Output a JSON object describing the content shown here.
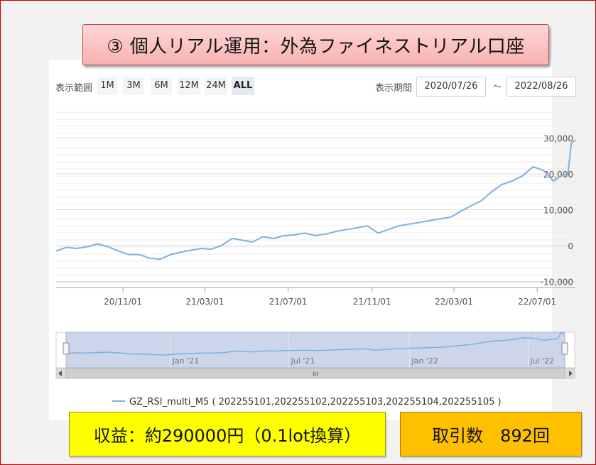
{
  "banner": {
    "title": "③ 個人リアル運用：外為ファイネストリアル口座"
  },
  "range_selector": {
    "label": "表示範囲",
    "buttons": [
      "1M",
      "3M",
      "6M",
      "12M",
      "24M",
      "ALL"
    ],
    "selected": "ALL"
  },
  "period": {
    "label": "表示期間",
    "from": "2020/07/26",
    "separator": "～",
    "to": "2022/08/26"
  },
  "colors": {
    "line": "#7eb0e0",
    "navigator_fill": "#cdd5ea",
    "banner": "#f7b2b2",
    "profit_box": "#ffff00",
    "trades_box": "#ffc000"
  },
  "chart_data": {
    "type": "line",
    "x_tick_labels": [
      "20/11/01",
      "21/03/01",
      "21/07/01",
      "21/11/01",
      "22/03/01",
      "22/07/01"
    ],
    "y_tick_labels": [
      "30,000",
      "20,000",
      "10,000",
      "0",
      "-10,000"
    ],
    "ylim": [
      -10000,
      30000
    ],
    "xlim": [
      "2020-07-26",
      "2022-08-26"
    ],
    "grid": true,
    "legend_position": "bottom",
    "series": [
      {
        "name": "GZ_RSI_multi_M5 ( 202255101,202255102,202255103,202255104,202255105 )",
        "x": [
          "2020-07-26",
          "2020-08-10",
          "2020-08-25",
          "2020-09-10",
          "2020-09-25",
          "2020-10-10",
          "2020-10-25",
          "2020-11-10",
          "2020-11-25",
          "2020-12-10",
          "2020-12-25",
          "2021-01-10",
          "2021-01-25",
          "2021-02-10",
          "2021-02-25",
          "2021-03-10",
          "2021-03-25",
          "2021-04-10",
          "2021-04-25",
          "2021-05-10",
          "2021-05-25",
          "2021-06-10",
          "2021-06-25",
          "2021-07-10",
          "2021-07-25",
          "2021-08-10",
          "2021-08-25",
          "2021-09-10",
          "2021-09-25",
          "2021-10-10",
          "2021-10-25",
          "2021-11-10",
          "2021-11-25",
          "2021-12-10",
          "2021-12-25",
          "2022-01-10",
          "2022-01-25",
          "2022-02-10",
          "2022-02-25",
          "2022-03-10",
          "2022-03-25",
          "2022-04-10",
          "2022-04-25",
          "2022-05-10",
          "2022-05-25",
          "2022-06-10",
          "2022-06-25",
          "2022-07-10",
          "2022-07-25",
          "2022-08-05",
          "2022-08-15",
          "2022-08-20",
          "2022-08-26"
        ],
        "values": [
          -1500,
          -500,
          -800,
          -300,
          500,
          -300,
          -1500,
          -2500,
          -2500,
          -3500,
          -3800,
          -2500,
          -1800,
          -1200,
          -800,
          -1000,
          0,
          2000,
          1500,
          1000,
          2500,
          2000,
          2800,
          3000,
          3500,
          2800,
          3200,
          4000,
          4500,
          5000,
          5500,
          3500,
          4500,
          5500,
          6000,
          6500,
          7000,
          7500,
          8000,
          9500,
          11000,
          12500,
          15000,
          17000,
          18000,
          19500,
          22000,
          21000,
          18000,
          19500,
          20000,
          28500,
          29500
        ]
      }
    ]
  },
  "navigator": {
    "tick_labels": [
      "Jan '21",
      "Jul '21",
      "Jan '22",
      "Jul '22"
    ],
    "scroll_grip": "III"
  },
  "footer": {
    "profit": "収益：約290000円（0.1lot換算）",
    "trades": "取引数　892回"
  }
}
